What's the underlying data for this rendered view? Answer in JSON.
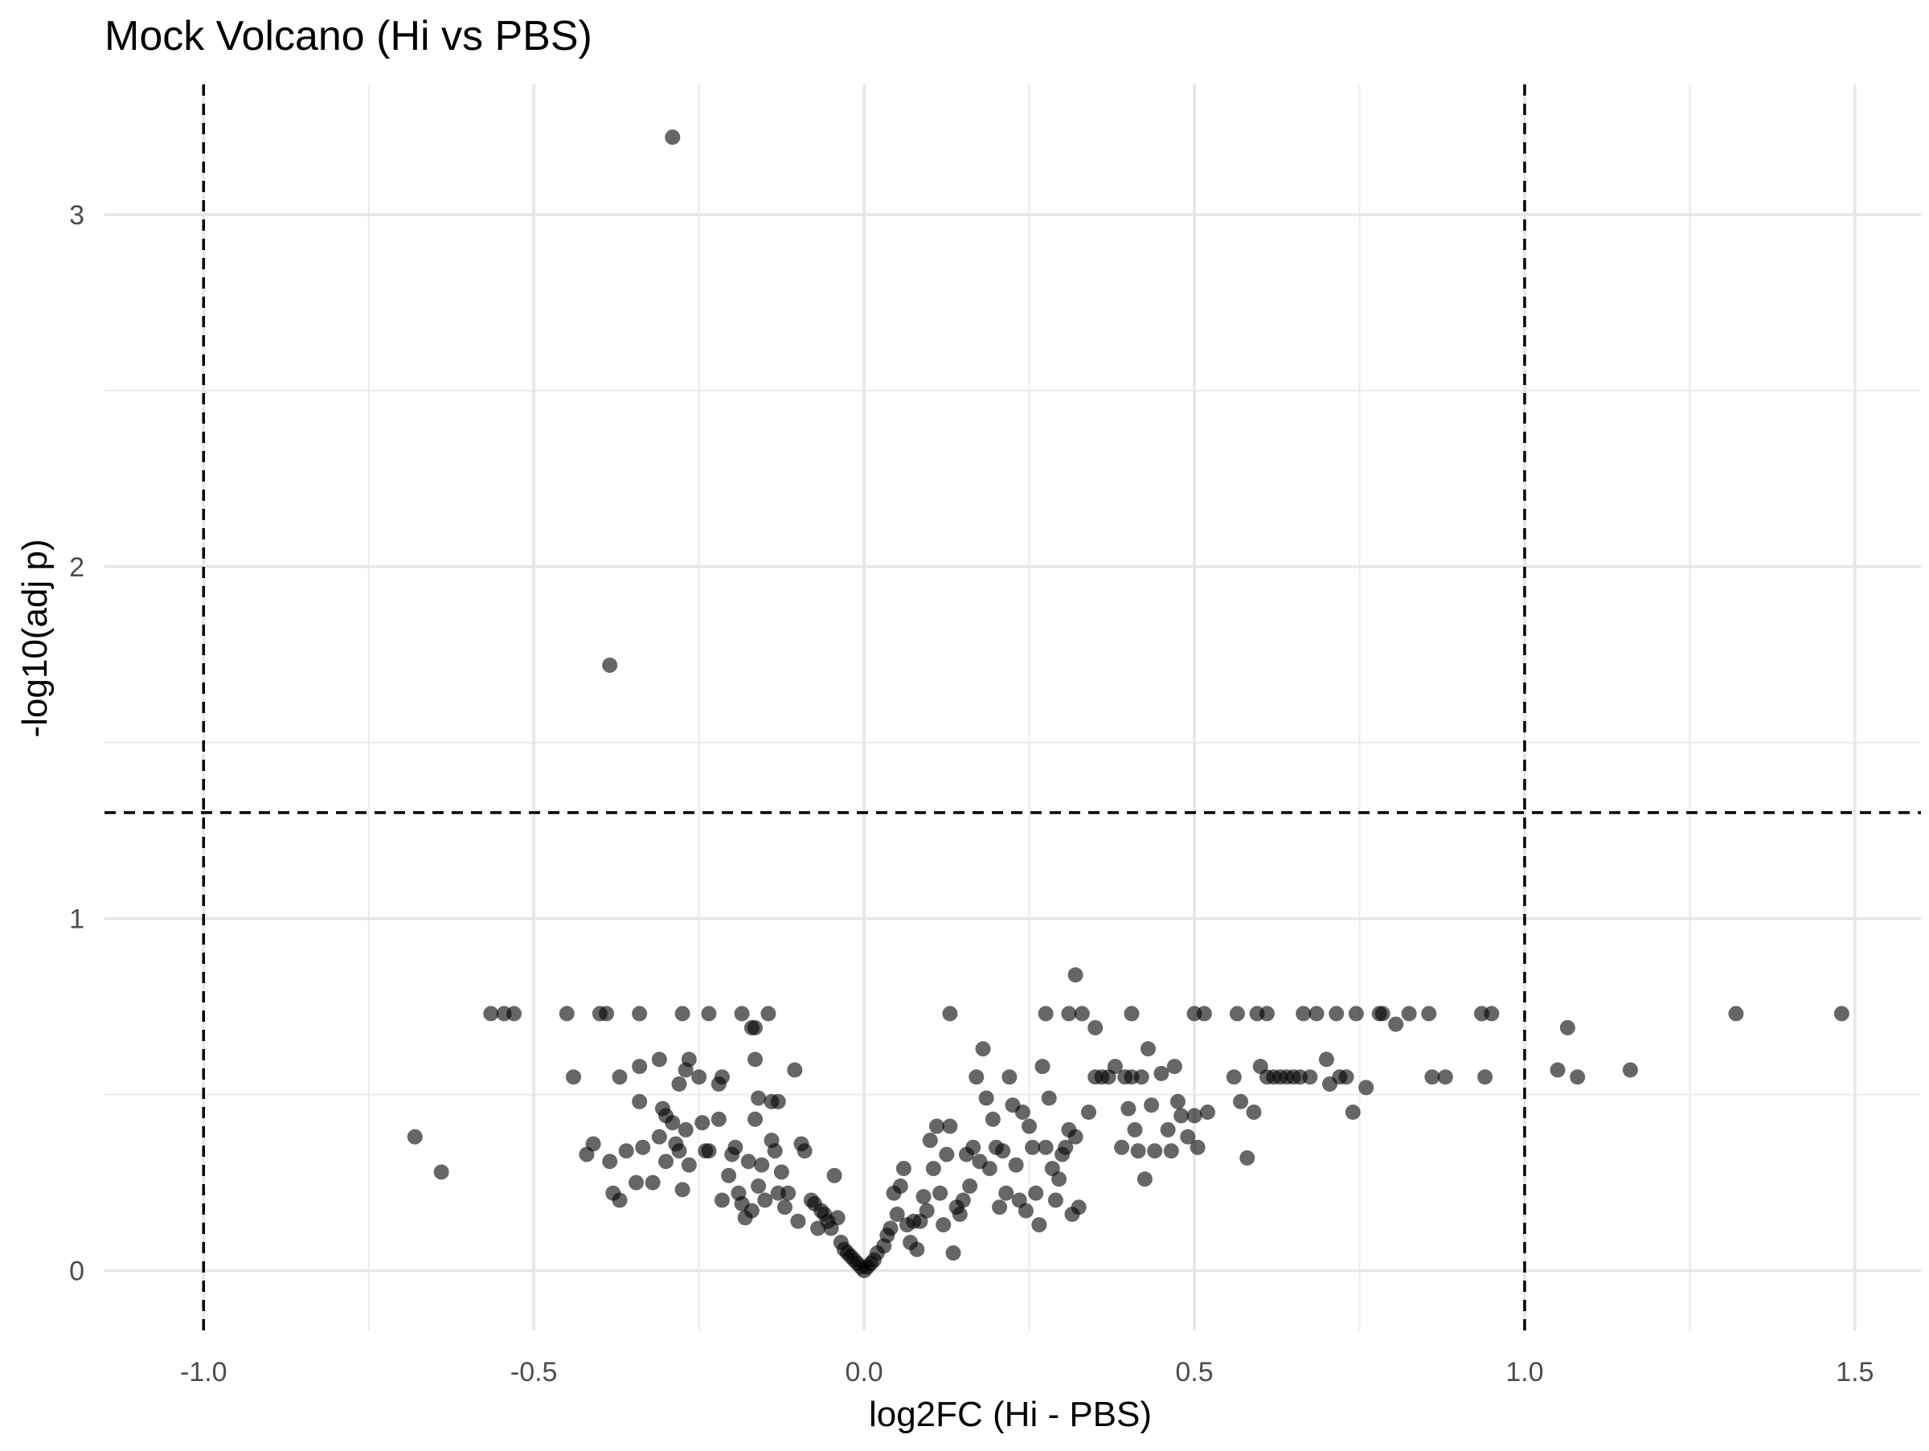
{
  "chart_data": {
    "type": "scatter",
    "title": "Mock Volcano (Hi vs PBS)",
    "xlabel": "log2FC (Hi - PBS)",
    "ylabel": "-log10(adj p)",
    "xlim": [
      -1.15,
      1.6
    ],
    "ylim": [
      -0.17,
      3.37
    ],
    "x_ticks": [
      -1.0,
      -0.5,
      0.0,
      0.5,
      1.0,
      1.5
    ],
    "x_tick_labels": [
      "-1.0",
      "-0.5",
      "0.0",
      "0.5",
      "1.0",
      "1.5"
    ],
    "y_ticks": [
      0,
      1,
      2,
      3
    ],
    "y_tick_labels": [
      "0",
      "1",
      "2",
      "3"
    ],
    "grid": true,
    "thresholds": {
      "x": [
        -1.0,
        1.0
      ],
      "y": 1.301
    },
    "point_color": "#000000",
    "point_opacity": 0.6,
    "points": [
      [
        -0.29,
        3.22
      ],
      [
        -0.385,
        1.72
      ],
      [
        -0.68,
        0.38
      ],
      [
        -0.64,
        0.28
      ],
      [
        -0.565,
        0.73
      ],
      [
        -0.545,
        0.73
      ],
      [
        -0.53,
        0.73
      ],
      [
        -0.45,
        0.73
      ],
      [
        -0.4,
        0.73
      ],
      [
        -0.39,
        0.73
      ],
      [
        -0.34,
        0.73
      ],
      [
        -0.275,
        0.73
      ],
      [
        -0.235,
        0.73
      ],
      [
        -0.185,
        0.73
      ],
      [
        -0.17,
        0.69
      ],
      [
        -0.165,
        0.69
      ],
      [
        -0.145,
        0.73
      ],
      [
        -0.44,
        0.55
      ],
      [
        -0.37,
        0.55
      ],
      [
        -0.34,
        0.58
      ],
      [
        -0.31,
        0.6
      ],
      [
        -0.28,
        0.53
      ],
      [
        -0.27,
        0.57
      ],
      [
        -0.265,
        0.6
      ],
      [
        -0.22,
        0.53
      ],
      [
        -0.215,
        0.55
      ],
      [
        -0.165,
        0.6
      ],
      [
        -0.16,
        0.49
      ],
      [
        -0.14,
        0.48
      ],
      [
        -0.13,
        0.48
      ],
      [
        -0.105,
        0.57
      ],
      [
        -0.42,
        0.33
      ],
      [
        -0.41,
        0.36
      ],
      [
        -0.385,
        0.31
      ],
      [
        -0.38,
        0.22
      ],
      [
        -0.37,
        0.2
      ],
      [
        -0.36,
        0.34
      ],
      [
        -0.345,
        0.25
      ],
      [
        -0.34,
        0.48
      ],
      [
        -0.335,
        0.35
      ],
      [
        -0.32,
        0.25
      ],
      [
        -0.31,
        0.38
      ],
      [
        -0.305,
        0.46
      ],
      [
        -0.3,
        0.44
      ],
      [
        -0.3,
        0.31
      ],
      [
        -0.29,
        0.42
      ],
      [
        -0.285,
        0.36
      ],
      [
        -0.28,
        0.34
      ],
      [
        -0.275,
        0.23
      ],
      [
        -0.27,
        0.4
      ],
      [
        -0.265,
        0.3
      ],
      [
        -0.25,
        0.55
      ],
      [
        -0.245,
        0.42
      ],
      [
        -0.24,
        0.34
      ],
      [
        -0.235,
        0.34
      ],
      [
        -0.22,
        0.43
      ],
      [
        -0.215,
        0.2
      ],
      [
        -0.205,
        0.27
      ],
      [
        -0.2,
        0.33
      ],
      [
        -0.195,
        0.35
      ],
      [
        -0.19,
        0.22
      ],
      [
        -0.185,
        0.19
      ],
      [
        -0.18,
        0.15
      ],
      [
        -0.175,
        0.31
      ],
      [
        -0.17,
        0.17
      ],
      [
        -0.165,
        0.43
      ],
      [
        -0.16,
        0.24
      ],
      [
        -0.155,
        0.3
      ],
      [
        -0.15,
        0.2
      ],
      [
        -0.14,
        0.37
      ],
      [
        -0.135,
        0.34
      ],
      [
        -0.13,
        0.22
      ],
      [
        -0.125,
        0.28
      ],
      [
        -0.12,
        0.18
      ],
      [
        -0.115,
        0.22
      ],
      [
        -0.1,
        0.14
      ],
      [
        -0.095,
        0.36
      ],
      [
        -0.09,
        0.34
      ],
      [
        -0.08,
        0.2
      ],
      [
        -0.075,
        0.19
      ],
      [
        -0.07,
        0.12
      ],
      [
        -0.065,
        0.17
      ],
      [
        -0.06,
        0.16
      ],
      [
        -0.055,
        0.14
      ],
      [
        -0.05,
        0.12
      ],
      [
        -0.045,
        0.27
      ],
      [
        -0.04,
        0.15
      ],
      [
        -0.035,
        0.08
      ],
      [
        -0.03,
        0.06
      ],
      [
        -0.025,
        0.05
      ],
      [
        -0.02,
        0.04
      ],
      [
        -0.015,
        0.03
      ],
      [
        -0.01,
        0.02
      ],
      [
        -0.005,
        0.01
      ],
      [
        0.0,
        0.0
      ],
      [
        0.005,
        0.01
      ],
      [
        0.01,
        0.02
      ],
      [
        0.015,
        0.03
      ],
      [
        0.02,
        0.05
      ],
      [
        0.03,
        0.07
      ],
      [
        0.035,
        0.1
      ],
      [
        0.04,
        0.12
      ],
      [
        0.045,
        0.22
      ],
      [
        0.05,
        0.16
      ],
      [
        0.055,
        0.24
      ],
      [
        0.06,
        0.29
      ],
      [
        0.065,
        0.13
      ],
      [
        0.07,
        0.08
      ],
      [
        0.075,
        0.14
      ],
      [
        0.08,
        0.06
      ],
      [
        0.085,
        0.14
      ],
      [
        0.09,
        0.21
      ],
      [
        0.095,
        0.17
      ],
      [
        0.1,
        0.37
      ],
      [
        0.105,
        0.29
      ],
      [
        0.11,
        0.41
      ],
      [
        0.115,
        0.22
      ],
      [
        0.12,
        0.13
      ],
      [
        0.125,
        0.33
      ],
      [
        0.13,
        0.41
      ],
      [
        0.135,
        0.05
      ],
      [
        0.14,
        0.18
      ],
      [
        0.145,
        0.16
      ],
      [
        0.15,
        0.2
      ],
      [
        0.155,
        0.33
      ],
      [
        0.16,
        0.24
      ],
      [
        0.165,
        0.35
      ],
      [
        0.17,
        0.55
      ],
      [
        0.175,
        0.31
      ],
      [
        0.18,
        0.63
      ],
      [
        0.185,
        0.49
      ],
      [
        0.19,
        0.29
      ],
      [
        0.195,
        0.43
      ],
      [
        0.2,
        0.35
      ],
      [
        0.205,
        0.18
      ],
      [
        0.21,
        0.34
      ],
      [
        0.215,
        0.22
      ],
      [
        0.22,
        0.55
      ],
      [
        0.225,
        0.47
      ],
      [
        0.23,
        0.3
      ],
      [
        0.235,
        0.2
      ],
      [
        0.24,
        0.45
      ],
      [
        0.245,
        0.17
      ],
      [
        0.25,
        0.41
      ],
      [
        0.255,
        0.35
      ],
      [
        0.26,
        0.22
      ],
      [
        0.265,
        0.13
      ],
      [
        0.27,
        0.58
      ],
      [
        0.275,
        0.35
      ],
      [
        0.28,
        0.49
      ],
      [
        0.285,
        0.29
      ],
      [
        0.29,
        0.2
      ],
      [
        0.295,
        0.26
      ],
      [
        0.3,
        0.33
      ],
      [
        0.305,
        0.35
      ],
      [
        0.31,
        0.4
      ],
      [
        0.315,
        0.16
      ],
      [
        0.32,
        0.38
      ],
      [
        0.325,
        0.18
      ],
      [
        0.13,
        0.73
      ],
      [
        0.275,
        0.73
      ],
      [
        0.31,
        0.73
      ],
      [
        0.32,
        0.84
      ],
      [
        0.33,
        0.73
      ],
      [
        0.35,
        0.69
      ],
      [
        0.405,
        0.73
      ],
      [
        0.5,
        0.73
      ],
      [
        0.515,
        0.73
      ],
      [
        0.565,
        0.73
      ],
      [
        0.595,
        0.73
      ],
      [
        0.61,
        0.73
      ],
      [
        0.665,
        0.73
      ],
      [
        0.685,
        0.73
      ],
      [
        0.715,
        0.73
      ],
      [
        0.745,
        0.73
      ],
      [
        0.78,
        0.73
      ],
      [
        0.785,
        0.73
      ],
      [
        0.805,
        0.7
      ],
      [
        0.825,
        0.73
      ],
      [
        0.855,
        0.73
      ],
      [
        0.935,
        0.73
      ],
      [
        0.95,
        0.73
      ],
      [
        1.065,
        0.69
      ],
      [
        1.32,
        0.73
      ],
      [
        1.48,
        0.73
      ],
      [
        0.34,
        0.45
      ],
      [
        0.35,
        0.55
      ],
      [
        0.36,
        0.55
      ],
      [
        0.37,
        0.55
      ],
      [
        0.38,
        0.58
      ],
      [
        0.39,
        0.35
      ],
      [
        0.395,
        0.55
      ],
      [
        0.4,
        0.46
      ],
      [
        0.405,
        0.55
      ],
      [
        0.41,
        0.4
      ],
      [
        0.415,
        0.34
      ],
      [
        0.42,
        0.55
      ],
      [
        0.425,
        0.26
      ],
      [
        0.43,
        0.63
      ],
      [
        0.435,
        0.47
      ],
      [
        0.44,
        0.34
      ],
      [
        0.45,
        0.56
      ],
      [
        0.46,
        0.4
      ],
      [
        0.465,
        0.34
      ],
      [
        0.47,
        0.58
      ],
      [
        0.475,
        0.48
      ],
      [
        0.48,
        0.44
      ],
      [
        0.49,
        0.38
      ],
      [
        0.5,
        0.44
      ],
      [
        0.505,
        0.35
      ],
      [
        0.52,
        0.45
      ],
      [
        0.56,
        0.55
      ],
      [
        0.57,
        0.48
      ],
      [
        0.58,
        0.32
      ],
      [
        0.59,
        0.45
      ],
      [
        0.6,
        0.58
      ],
      [
        0.61,
        0.55
      ],
      [
        0.62,
        0.55
      ],
      [
        0.63,
        0.55
      ],
      [
        0.64,
        0.55
      ],
      [
        0.65,
        0.55
      ],
      [
        0.66,
        0.55
      ],
      [
        0.675,
        0.55
      ],
      [
        0.7,
        0.6
      ],
      [
        0.705,
        0.53
      ],
      [
        0.72,
        0.55
      ],
      [
        0.73,
        0.55
      ],
      [
        0.74,
        0.45
      ],
      [
        0.76,
        0.52
      ],
      [
        0.86,
        0.55
      ],
      [
        0.88,
        0.55
      ],
      [
        0.94,
        0.55
      ],
      [
        1.05,
        0.57
      ],
      [
        1.08,
        0.55
      ],
      [
        1.16,
        0.57
      ]
    ]
  }
}
